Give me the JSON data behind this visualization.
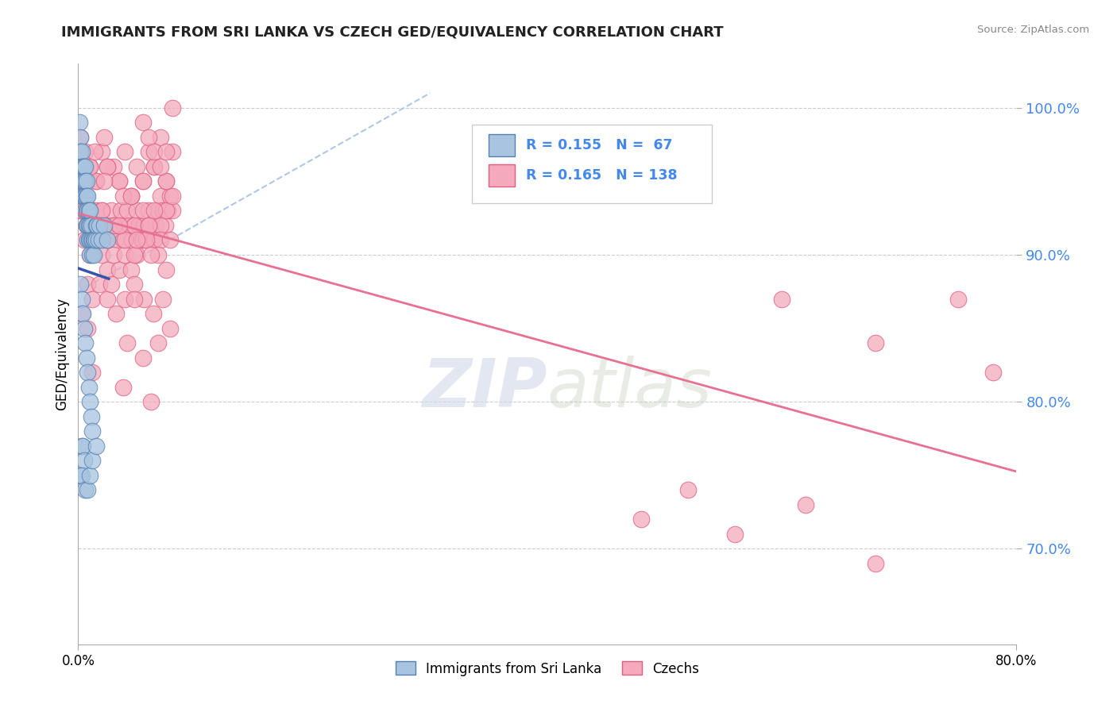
{
  "title": "IMMIGRANTS FROM SRI LANKA VS CZECH GED/EQUIVALENCY CORRELATION CHART",
  "source_text": "Source: ZipAtlas.com",
  "ylabel": "GED/Equivalency",
  "ytick_labels": [
    "100.0%",
    "90.0%",
    "80.0%",
    "70.0%"
  ],
  "ytick_values": [
    1.0,
    0.9,
    0.8,
    0.7
  ],
  "xlim": [
    0.0,
    0.8
  ],
  "ylim": [
    0.635,
    1.03
  ],
  "legend_label_blue": "Immigrants from Sri Lanka",
  "legend_label_pink": "Czechs",
  "blue_color": "#A8C4E0",
  "pink_color": "#F4AABC",
  "blue_edge_color": "#5580B0",
  "pink_edge_color": "#E06080",
  "blue_line_color": "#3355AA",
  "pink_line_color": "#E87090",
  "dashed_line_color": "#B0C8E8",
  "watermark": "ZIPatlas",
  "blue_scatter_x": [
    0.001,
    0.002,
    0.002,
    0.003,
    0.003,
    0.003,
    0.004,
    0.004,
    0.004,
    0.005,
    0.005,
    0.005,
    0.006,
    0.006,
    0.006,
    0.006,
    0.007,
    0.007,
    0.007,
    0.007,
    0.008,
    0.008,
    0.008,
    0.008,
    0.009,
    0.009,
    0.009,
    0.01,
    0.01,
    0.01,
    0.01,
    0.011,
    0.011,
    0.012,
    0.012,
    0.013,
    0.013,
    0.014,
    0.015,
    0.015,
    0.016,
    0.017,
    0.018,
    0.02,
    0.022,
    0.025,
    0.002,
    0.003,
    0.004,
    0.005,
    0.006,
    0.007,
    0.008,
    0.009,
    0.01,
    0.011,
    0.012,
    0.003,
    0.004,
    0.005,
    0.002,
    0.003,
    0.006,
    0.008,
    0.01,
    0.012,
    0.015
  ],
  "blue_scatter_y": [
    0.99,
    0.98,
    0.97,
    0.97,
    0.96,
    0.95,
    0.96,
    0.95,
    0.94,
    0.96,
    0.95,
    0.94,
    0.96,
    0.95,
    0.94,
    0.93,
    0.95,
    0.94,
    0.93,
    0.92,
    0.94,
    0.93,
    0.92,
    0.91,
    0.93,
    0.92,
    0.91,
    0.93,
    0.92,
    0.91,
    0.9,
    0.92,
    0.91,
    0.91,
    0.9,
    0.91,
    0.9,
    0.91,
    0.92,
    0.91,
    0.92,
    0.91,
    0.92,
    0.91,
    0.92,
    0.91,
    0.88,
    0.87,
    0.86,
    0.85,
    0.84,
    0.83,
    0.82,
    0.81,
    0.8,
    0.79,
    0.78,
    0.77,
    0.77,
    0.76,
    0.75,
    0.75,
    0.74,
    0.74,
    0.75,
    0.76,
    0.77
  ],
  "pink_scatter_x": [
    0.001,
    0.002,
    0.003,
    0.004,
    0.005,
    0.006,
    0.007,
    0.008,
    0.009,
    0.01,
    0.011,
    0.012,
    0.013,
    0.014,
    0.015,
    0.016,
    0.018,
    0.02,
    0.022,
    0.024,
    0.026,
    0.028,
    0.03,
    0.032,
    0.034,
    0.036,
    0.038,
    0.04,
    0.042,
    0.044,
    0.046,
    0.048,
    0.05,
    0.052,
    0.054,
    0.056,
    0.058,
    0.06,
    0.062,
    0.064,
    0.066,
    0.068,
    0.07,
    0.072,
    0.074,
    0.076,
    0.078,
    0.08,
    0.005,
    0.01,
    0.015,
    0.02,
    0.025,
    0.03,
    0.035,
    0.04,
    0.045,
    0.05,
    0.055,
    0.06,
    0.065,
    0.07,
    0.075,
    0.08,
    0.008,
    0.012,
    0.018,
    0.025,
    0.032,
    0.04,
    0.048,
    0.056,
    0.064,
    0.072,
    0.01,
    0.02,
    0.03,
    0.04,
    0.05,
    0.06,
    0.07,
    0.08,
    0.015,
    0.025,
    0.035,
    0.045,
    0.055,
    0.065,
    0.075,
    0.005,
    0.015,
    0.025,
    0.035,
    0.045,
    0.055,
    0.065,
    0.075,
    0.002,
    0.006,
    0.01,
    0.014,
    0.022,
    0.055,
    0.06,
    0.065,
    0.07,
    0.075,
    0.08,
    0.02,
    0.03,
    0.04,
    0.048,
    0.055,
    0.038,
    0.06,
    0.07,
    0.048,
    0.058,
    0.068,
    0.078,
    0.022,
    0.045,
    0.065,
    0.035,
    0.05,
    0.062,
    0.075,
    0.003,
    0.008,
    0.042,
    0.055,
    0.068,
    0.078,
    0.028,
    0.048,
    0.012,
    0.038,
    0.062
  ],
  "pink_scatter_y": [
    0.93,
    0.93,
    0.94,
    0.93,
    0.94,
    0.93,
    0.92,
    0.93,
    0.92,
    0.93,
    0.92,
    0.93,
    0.91,
    0.92,
    0.93,
    0.91,
    0.92,
    0.93,
    0.92,
    0.91,
    0.92,
    0.93,
    0.92,
    0.91,
    0.92,
    0.93,
    0.91,
    0.92,
    0.93,
    0.92,
    0.91,
    0.92,
    0.93,
    0.92,
    0.91,
    0.92,
    0.91,
    0.93,
    0.92,
    0.91,
    0.92,
    0.93,
    0.94,
    0.93,
    0.92,
    0.93,
    0.94,
    0.93,
    0.91,
    0.9,
    0.91,
    0.9,
    0.89,
    0.9,
    0.89,
    0.9,
    0.89,
    0.9,
    0.91,
    0.92,
    0.91,
    0.92,
    0.93,
    0.94,
    0.88,
    0.87,
    0.88,
    0.87,
    0.86,
    0.87,
    0.88,
    0.87,
    0.86,
    0.87,
    0.96,
    0.97,
    0.96,
    0.97,
    0.96,
    0.97,
    0.98,
    0.97,
    0.95,
    0.96,
    0.95,
    0.94,
    0.95,
    0.96,
    0.95,
    0.94,
    0.95,
    0.96,
    0.95,
    0.94,
    0.95,
    0.96,
    0.95,
    0.98,
    0.97,
    0.96,
    0.97,
    0.98,
    0.99,
    0.98,
    0.97,
    0.96,
    0.97,
    1.0,
    0.93,
    0.92,
    0.91,
    0.92,
    0.93,
    0.94,
    0.92,
    0.91,
    0.9,
    0.91,
    0.9,
    0.91,
    0.95,
    0.94,
    0.93,
    0.92,
    0.91,
    0.9,
    0.89,
    0.86,
    0.85,
    0.84,
    0.83,
    0.84,
    0.85,
    0.88,
    0.87,
    0.82,
    0.81,
    0.8
  ],
  "pink_extra_x": [
    0.6,
    0.75,
    0.68,
    0.78,
    0.52,
    0.62,
    0.48,
    0.56,
    0.68
  ],
  "pink_extra_y": [
    0.87,
    0.87,
    0.84,
    0.82,
    0.74,
    0.73,
    0.72,
    0.71,
    0.69
  ]
}
